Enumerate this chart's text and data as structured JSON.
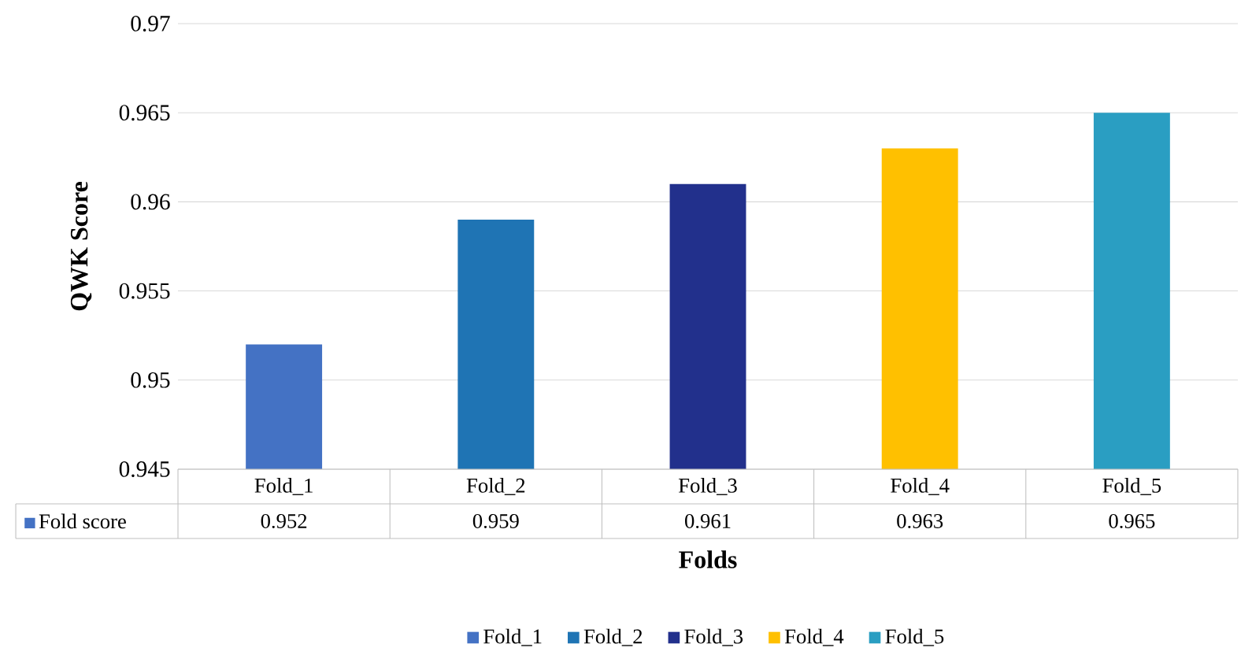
{
  "chart_data": {
    "type": "bar",
    "xlabel": "Folds",
    "ylabel": "QWK Score",
    "categories": [
      "Fold_1",
      "Fold_2",
      "Fold_3",
      "Fold_4",
      "Fold_5"
    ],
    "series": [
      {
        "name": "Fold score",
        "values": [
          0.952,
          0.959,
          0.961,
          0.963,
          0.965
        ],
        "colors": [
          "#4472c4",
          "#1f74b4",
          "#22308c",
          "#ffc000",
          "#2a9ec2"
        ]
      }
    ],
    "ylim": [
      0.945,
      0.97
    ],
    "yticks": [
      0.945,
      0.95,
      0.955,
      0.96,
      0.965,
      0.97
    ],
    "grid": "y",
    "data_labels": true,
    "legend": "bottom"
  }
}
